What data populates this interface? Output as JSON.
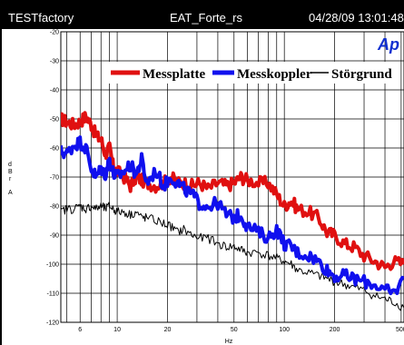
{
  "header": {
    "left": "TESTfactory",
    "center": "EAT_Forte_rs",
    "right": "04/28/09 13:01:48"
  },
  "logo": {
    "text": "Ap"
  },
  "colors": {
    "background": "#000000",
    "panel": "#ffffff",
    "messplatte": "#e01010",
    "messkoppler": "#1010ee",
    "storgrund": "#000000"
  },
  "chart_data": {
    "type": "line",
    "xscale": "log",
    "xlim": [
      4.6,
      520
    ],
    "ylim": [
      -120,
      -20
    ],
    "xlabel": "Hz",
    "ylabel_parts": [
      "d",
      "B",
      "r",
      "A"
    ],
    "xticks": [
      6,
      10,
      20,
      50,
      100,
      200,
      500
    ],
    "yticks": [
      -20,
      -30,
      -40,
      -50,
      -60,
      -70,
      -80,
      -90,
      -100,
      -110,
      -120
    ],
    "x_minor_gridlines": [
      5,
      6,
      7,
      8,
      9,
      10,
      20,
      30,
      40,
      50,
      60,
      70,
      80,
      90,
      100,
      200,
      300,
      400,
      500
    ],
    "grid": true,
    "legend_position": "top",
    "series": [
      {
        "name": "Messplatte",
        "color": "#e01010",
        "x": [
          4.6,
          5.0,
          5.5,
          6.0,
          6.5,
          7.0,
          7.5,
          8.0,
          8.5,
          9.0,
          9.5,
          10,
          11,
          12,
          13,
          14,
          15,
          17,
          19,
          21,
          23,
          25,
          28,
          31,
          35,
          40,
          45,
          50,
          55,
          60,
          70,
          80,
          90,
          100,
          110,
          120,
          140,
          160,
          180,
          200,
          230,
          260,
          300,
          350,
          400,
          450,
          520
        ],
        "y": [
          -50,
          -51,
          -52,
          -51,
          -49,
          -52,
          -56,
          -57,
          -62,
          -60,
          -67,
          -68,
          -70,
          -73,
          -70,
          -71,
          -72,
          -73,
          -72,
          -70,
          -72,
          -72,
          -73,
          -72,
          -74,
          -72,
          -73,
          -72,
          -70,
          -71,
          -72,
          -72,
          -76,
          -80,
          -78,
          -81,
          -82,
          -84,
          -89,
          -90,
          -93,
          -94,
          -97,
          -99,
          -101,
          -99,
          -100
        ]
      },
      {
        "name": "Messkoppler",
        "color": "#1010ee",
        "x": [
          4.6,
          5.0,
          5.5,
          6.0,
          6.5,
          7.0,
          7.5,
          8.0,
          8.5,
          9.0,
          9.5,
          10,
          11,
          12,
          13,
          14,
          15,
          17,
          19,
          21,
          23,
          25,
          28,
          31,
          35,
          40,
          45,
          50,
          55,
          60,
          70,
          80,
          90,
          100,
          110,
          120,
          140,
          160,
          180,
          200,
          230,
          260,
          300,
          350,
          400,
          450,
          520
        ],
        "y": [
          -61,
          -62,
          -59,
          -58,
          -60,
          -67,
          -70,
          -67,
          -69,
          -64,
          -69,
          -70,
          -68,
          -66,
          -69,
          -64,
          -72,
          -68,
          -73,
          -70,
          -72,
          -74,
          -76,
          -79,
          -80,
          -79,
          -83,
          -84,
          -83,
          -87,
          -89,
          -91,
          -88,
          -93,
          -94,
          -96,
          -97,
          -99,
          -102,
          -104,
          -104,
          -105,
          -106,
          -107,
          -109,
          -110,
          -105
        ]
      },
      {
        "name": "Störgrund",
        "color": "#000000",
        "x": [
          4.6,
          5.0,
          5.5,
          6.0,
          6.5,
          7.0,
          7.5,
          8.0,
          8.5,
          9.0,
          9.5,
          10,
          11,
          12,
          13,
          14,
          15,
          17,
          19,
          21,
          23,
          25,
          28,
          31,
          35,
          40,
          45,
          50,
          55,
          60,
          70,
          80,
          90,
          100,
          110,
          120,
          140,
          160,
          180,
          200,
          230,
          260,
          300,
          350,
          400,
          450,
          520
        ],
        "y": [
          -82,
          -81,
          -81,
          -80,
          -81,
          -80,
          -81,
          -80,
          -81,
          -80,
          -81,
          -82,
          -82,
          -83,
          -82,
          -84,
          -84,
          -85,
          -86,
          -87,
          -89,
          -88,
          -90,
          -91,
          -91,
          -93,
          -94,
          -94,
          -95,
          -96,
          -96,
          -97,
          -98,
          -99,
          -100,
          -102,
          -103,
          -104,
          -105,
          -106,
          -107,
          -108,
          -109,
          -111,
          -112,
          -113,
          -115
        ]
      }
    ]
  }
}
